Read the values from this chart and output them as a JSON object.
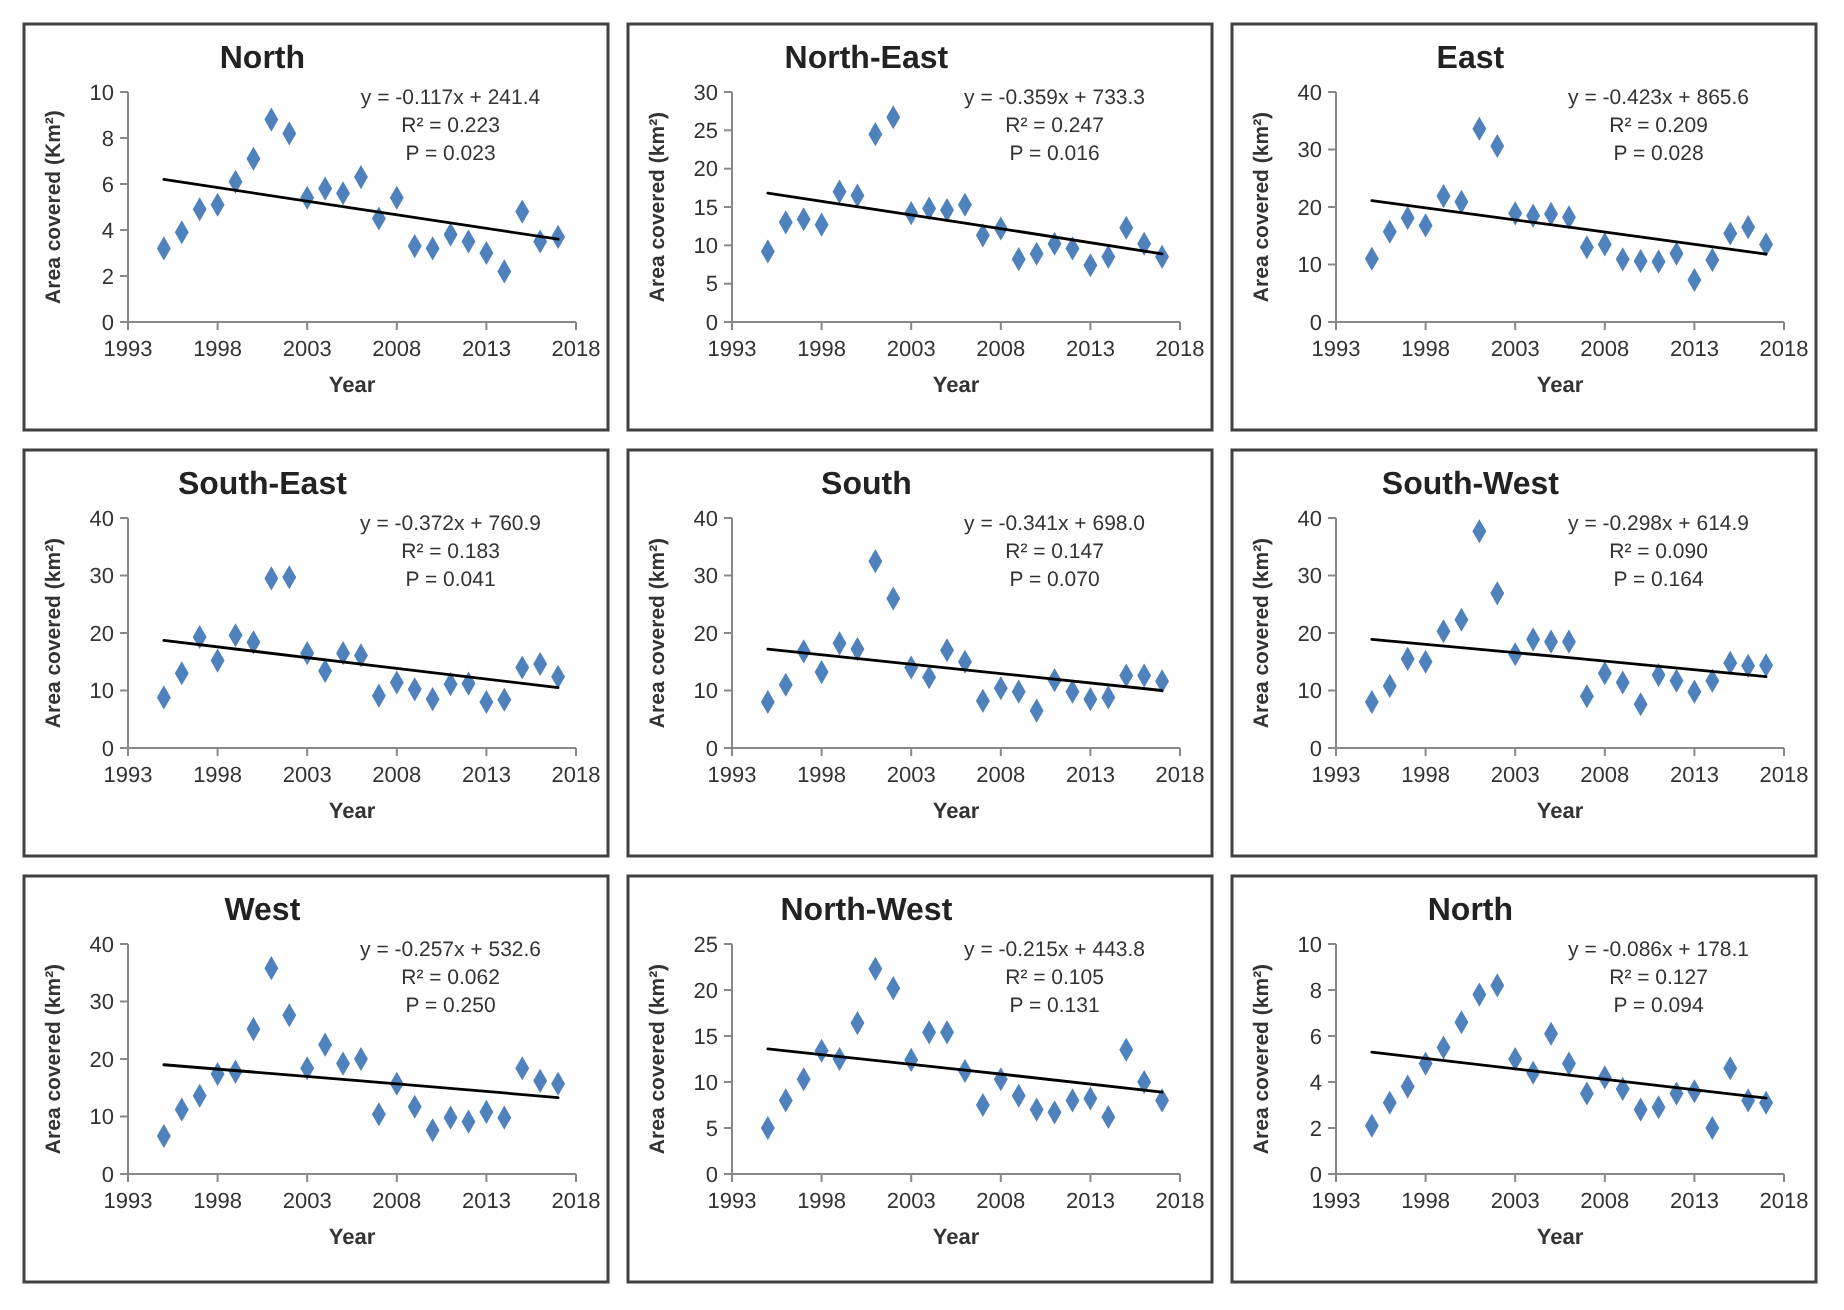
{
  "chart_data": [
    {
      "type": "scatter",
      "title": "North",
      "xlabel": "Year",
      "ylabel": "Area covered (Km²)",
      "x": [
        1995,
        1996,
        1997,
        1998,
        1999,
        2000,
        2001,
        2002,
        2003,
        2004,
        2005,
        2006,
        2007,
        2008,
        2009,
        2010,
        2011,
        2012,
        2013,
        2014,
        2015,
        2016,
        2017
      ],
      "xlim": [
        1993,
        2018
      ],
      "xticks": [
        1993,
        1998,
        2003,
        2008,
        2013,
        2018
      ],
      "ylim": [
        0,
        10
      ],
      "yticks": [
        0,
        2,
        4,
        6,
        8,
        10
      ],
      "annotations": [
        "y = -0.117x + 241.4",
        "R² = 0.223",
        "P = 0.023"
      ],
      "series": [
        {
          "marker": "diamond",
          "color": "#4f81bd",
          "values": [
            3.2,
            3.9,
            4.9,
            5.1,
            6.1,
            7.1,
            8.8,
            8.2,
            5.4,
            5.8,
            5.6,
            6.3,
            4.5,
            5.4,
            3.3,
            3.2,
            3.8,
            3.5,
            3.0,
            2.2,
            4.8,
            3.5,
            3.7
          ]
        },
        {
          "type": "line",
          "color": "#000000",
          "x": [
            1995,
            2006,
            2017
          ],
          "values": [
            6.2,
            4.9,
            3.6
          ]
        }
      ]
    },
    {
      "type": "scatter",
      "title": "North-East",
      "xlabel": "Year",
      "ylabel": "Area covered (km²)",
      "x": [
        1995,
        1996,
        1997,
        1998,
        1999,
        2000,
        2001,
        2002,
        2003,
        2004,
        2005,
        2006,
        2007,
        2008,
        2009,
        2010,
        2011,
        2012,
        2013,
        2014,
        2015,
        2016,
        2017
      ],
      "xlim": [
        1993,
        2018
      ],
      "xticks": [
        1993,
        1998,
        2003,
        2008,
        2013,
        2018
      ],
      "ylim": [
        0,
        30
      ],
      "yticks": [
        0,
        5,
        10,
        15,
        20,
        25,
        30
      ],
      "annotations": [
        "y = -0.359x + 733.3",
        "R² = 0.247",
        "P = 0.016"
      ],
      "series": [
        {
          "marker": "diamond",
          "color": "#4f81bd",
          "values": [
            9.2,
            13,
            13.4,
            12.7,
            17,
            16.5,
            24.5,
            26.7,
            14.2,
            14.8,
            14.6,
            15.3,
            11.3,
            12.2,
            8.2,
            8.9,
            10.2,
            9.6,
            7.4,
            8.5,
            12.3,
            10.2,
            8.5
          ]
        },
        {
          "type": "line",
          "color": "#000000",
          "x": [
            1995,
            2006,
            2017
          ],
          "values": [
            16.8,
            12.9,
            8.9
          ]
        }
      ]
    },
    {
      "type": "scatter",
      "title": "East",
      "xlabel": "Year",
      "ylabel": "Area covered (km²)",
      "x": [
        1995,
        1996,
        1997,
        1998,
        1999,
        2000,
        2001,
        2002,
        2003,
        2004,
        2005,
        2006,
        2007,
        2008,
        2009,
        2010,
        2011,
        2012,
        2013,
        2014,
        2015,
        2016,
        2017
      ],
      "xlim": [
        1993,
        2018
      ],
      "xticks": [
        1993,
        1998,
        2003,
        2008,
        2013,
        2018
      ],
      "ylim": [
        0,
        40
      ],
      "yticks": [
        0,
        10,
        20,
        30,
        40
      ],
      "annotations": [
        "y = -0.423x + 865.6",
        "R² = 0.209",
        "P = 0.028"
      ],
      "series": [
        {
          "marker": "diamond",
          "color": "#4f81bd",
          "values": [
            11,
            15.7,
            18.1,
            16.8,
            21.9,
            20.9,
            33.6,
            30.6,
            18.9,
            18.5,
            18.8,
            18.2,
            13,
            13.5,
            10.9,
            10.6,
            10.5,
            11.9,
            7.3,
            10.8,
            15.4,
            16.5,
            13.5
          ]
        },
        {
          "type": "line",
          "color": "#000000",
          "x": [
            1995,
            2006,
            2017
          ],
          "values": [
            21.1,
            16.5,
            11.8
          ]
        }
      ]
    },
    {
      "type": "scatter",
      "title": "South-East",
      "xlabel": "Year",
      "ylabel": "Area covered (km²)",
      "x": [
        1995,
        1996,
        1997,
        1998,
        1999,
        2000,
        2001,
        2002,
        2003,
        2004,
        2005,
        2006,
        2007,
        2008,
        2009,
        2010,
        2011,
        2012,
        2013,
        2014,
        2015,
        2016,
        2017
      ],
      "xlim": [
        1993,
        2018
      ],
      "xticks": [
        1993,
        1998,
        2003,
        2008,
        2013,
        2018
      ],
      "ylim": [
        0,
        40
      ],
      "yticks": [
        0,
        10,
        20,
        30,
        40
      ],
      "annotations": [
        "y = -0.372x + 760.9",
        "R² = 0.183",
        "P = 0.041"
      ],
      "series": [
        {
          "marker": "diamond",
          "color": "#4f81bd",
          "values": [
            8.8,
            13,
            19.3,
            15.2,
            19.6,
            18.4,
            29.5,
            29.7,
            16.5,
            13.4,
            16.5,
            16.1,
            9.1,
            11.4,
            10.2,
            8.5,
            11.1,
            11.2,
            8,
            8.4,
            14,
            14.6,
            12.4
          ]
        },
        {
          "type": "line",
          "color": "#000000",
          "x": [
            1995,
            2006,
            2017
          ],
          "values": [
            18.7,
            14.6,
            10.5
          ]
        }
      ]
    },
    {
      "type": "scatter",
      "title": "South",
      "xlabel": "Year",
      "ylabel": "Area covered (km²)",
      "x": [
        1995,
        1996,
        1997,
        1998,
        1999,
        2000,
        2001,
        2002,
        2003,
        2004,
        2005,
        2006,
        2007,
        2008,
        2009,
        2010,
        2011,
        2012,
        2013,
        2014,
        2015,
        2016,
        2017
      ],
      "xlim": [
        1993,
        2018
      ],
      "xticks": [
        1993,
        1998,
        2003,
        2008,
        2013,
        2018
      ],
      "ylim": [
        0,
        40
      ],
      "yticks": [
        0,
        10,
        20,
        30,
        40
      ],
      "annotations": [
        "y = -0.341x + 698.0",
        "R² = 0.147",
        "P = 0.070"
      ],
      "series": [
        {
          "marker": "diamond",
          "color": "#4f81bd",
          "values": [
            8,
            11,
            16.8,
            13.2,
            18.2,
            17.2,
            32.5,
            26,
            14,
            12.3,
            17,
            15,
            8.2,
            10.4,
            9.8,
            6.5,
            11.8,
            9.8,
            8.5,
            8.8,
            12.6,
            12.6,
            11.6
          ]
        },
        {
          "type": "line",
          "color": "#000000",
          "x": [
            1995,
            2006,
            2017
          ],
          "values": [
            17.2,
            13.6,
            10
          ]
        }
      ]
    },
    {
      "type": "scatter",
      "title": "South-West",
      "xlabel": "Year",
      "ylabel": "Area covered (km²)",
      "x": [
        1995,
        1996,
        1997,
        1998,
        1999,
        2000,
        2001,
        2002,
        2003,
        2004,
        2005,
        2006,
        2007,
        2008,
        2009,
        2010,
        2011,
        2012,
        2013,
        2014,
        2015,
        2016,
        2017
      ],
      "xlim": [
        1993,
        2018
      ],
      "xticks": [
        1993,
        1998,
        2003,
        2008,
        2013,
        2018
      ],
      "ylim": [
        0,
        40
      ],
      "yticks": [
        0,
        10,
        20,
        30,
        40
      ],
      "annotations": [
        "y = -0.298x + 614.9",
        "R² = 0.090",
        "P = 0.164"
      ],
      "series": [
        {
          "marker": "diamond",
          "color": "#4f81bd",
          "values": [
            8,
            10.8,
            15.5,
            15,
            20.3,
            22.3,
            37.7,
            26.9,
            16.3,
            18.9,
            18.5,
            18.5,
            9,
            13,
            11.4,
            7.6,
            12.7,
            11.7,
            9.8,
            11.7,
            14.8,
            14.3,
            14.4
          ]
        },
        {
          "type": "line",
          "color": "#000000",
          "x": [
            1995,
            2006,
            2017
          ],
          "values": [
            18.9,
            15.7,
            12.4
          ]
        }
      ]
    },
    {
      "type": "scatter",
      "title": "West",
      "xlabel": "Year",
      "ylabel": "Area covered (km²)",
      "x": [
        1995,
        1996,
        1997,
        1998,
        1999,
        2000,
        2001,
        2002,
        2003,
        2004,
        2005,
        2006,
        2007,
        2008,
        2009,
        2010,
        2011,
        2012,
        2013,
        2014,
        2015,
        2016,
        2017
      ],
      "xlim": [
        1993,
        2018
      ],
      "xticks": [
        1993,
        1998,
        2003,
        2008,
        2013,
        2018
      ],
      "ylim": [
        0,
        40
      ],
      "yticks": [
        0,
        10,
        20,
        30,
        40
      ],
      "annotations": [
        "y = -0.257x + 532.6",
        "R² = 0.062",
        "P = 0.250"
      ],
      "series": [
        {
          "marker": "diamond",
          "color": "#4f81bd",
          "values": [
            6.6,
            11.2,
            13.6,
            17.4,
            17.8,
            25.2,
            35.8,
            27.6,
            18.4,
            22.5,
            19.2,
            20,
            10.4,
            15.7,
            11.7,
            7.6,
            9.8,
            9.1,
            10.8,
            9.8,
            18.4,
            16.2,
            15.7
          ]
        },
        {
          "type": "line",
          "color": "#000000",
          "x": [
            1995,
            2006,
            2017
          ],
          "values": [
            19,
            16.2,
            13.3
          ]
        }
      ]
    },
    {
      "type": "scatter",
      "title": "North-West",
      "xlabel": "Year",
      "ylabel": "Area covered (km²)",
      "x": [
        1995,
        1996,
        1997,
        1998,
        1999,
        2000,
        2001,
        2002,
        2003,
        2004,
        2005,
        2006,
        2007,
        2008,
        2009,
        2010,
        2011,
        2012,
        2013,
        2014,
        2015,
        2016,
        2017
      ],
      "xlim": [
        1993,
        2018
      ],
      "xticks": [
        1993,
        1998,
        2003,
        2008,
        2013,
        2018
      ],
      "ylim": [
        0,
        25
      ],
      "yticks": [
        0,
        5,
        10,
        15,
        20,
        25
      ],
      "annotations": [
        "y = -0.215x + 443.8",
        "R² = 0.105",
        "P = 0.131"
      ],
      "series": [
        {
          "marker": "diamond",
          "color": "#4f81bd",
          "values": [
            5,
            8,
            10.3,
            13.4,
            12.5,
            16.4,
            22.3,
            20.2,
            12.4,
            15.4,
            15.4,
            11.2,
            7.5,
            10.3,
            8.5,
            7,
            6.7,
            8,
            8.2,
            6.2,
            13.5,
            10,
            8
          ]
        },
        {
          "type": "line",
          "color": "#000000",
          "x": [
            1995,
            2006,
            2017
          ],
          "values": [
            13.6,
            11.3,
            8.9
          ]
        }
      ]
    },
    {
      "type": "scatter",
      "title": "North",
      "xlabel": "Year",
      "ylabel": "Area covered (km²)",
      "x": [
        1995,
        1996,
        1997,
        1998,
        1999,
        2000,
        2001,
        2002,
        2003,
        2004,
        2005,
        2006,
        2007,
        2008,
        2009,
        2010,
        2011,
        2012,
        2013,
        2014,
        2015,
        2016,
        2017
      ],
      "xlim": [
        1993,
        2018
      ],
      "xticks": [
        1993,
        1998,
        2003,
        2008,
        2013,
        2018
      ],
      "ylim": [
        0,
        10
      ],
      "yticks": [
        0,
        2,
        4,
        6,
        8,
        10
      ],
      "annotations": [
        "y = -0.086x + 178.1",
        "R² = 0.127",
        "P = 0.094"
      ],
      "series": [
        {
          "marker": "diamond",
          "color": "#4f81bd",
          "values": [
            2.1,
            3.1,
            3.8,
            4.8,
            5.5,
            6.6,
            7.8,
            8.2,
            5.0,
            4.4,
            6.1,
            4.8,
            3.5,
            4.2,
            3.7,
            2.8,
            2.9,
            3.5,
            3.6,
            2.0,
            4.6,
            3.2,
            3.1
          ]
        },
        {
          "type": "line",
          "color": "#000000",
          "x": [
            1995,
            2006,
            2017
          ],
          "values": [
            5.3,
            4.3,
            3.3
          ]
        }
      ]
    }
  ]
}
